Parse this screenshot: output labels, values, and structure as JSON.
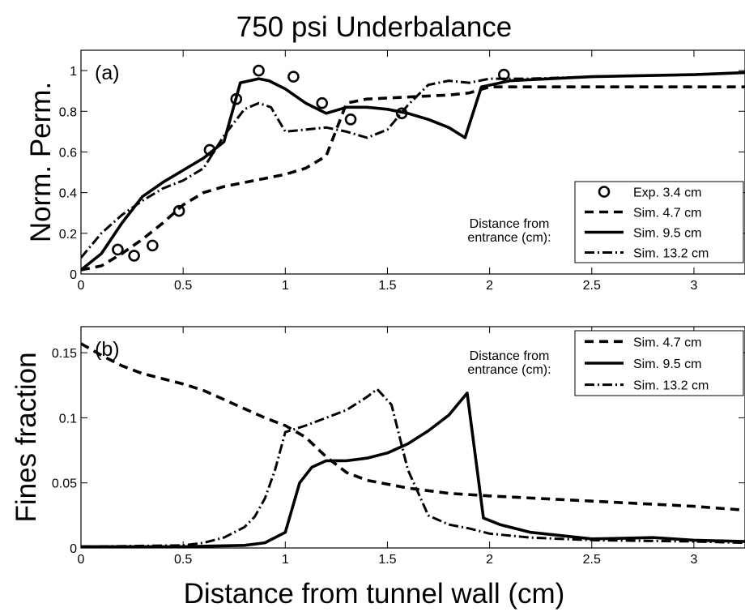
{
  "figure": {
    "title": "750 psi Underbalance",
    "xlabel": "Distance from tunnel wall (cm)"
  },
  "chart_data": [
    {
      "type": "line",
      "panel_label": "(a)",
      "ylabel": "Norm. Perm.",
      "xlim": [
        0,
        3.25
      ],
      "ylim": [
        0,
        1.1
      ],
      "xticks": [
        0,
        0.5,
        1,
        1.5,
        2,
        2.5,
        3
      ],
      "xtick_labels": [
        "0",
        "0.5",
        "1",
        "1.5",
        "2",
        "2.5",
        "3"
      ],
      "yticks": [
        0,
        0.2,
        0.4,
        0.6,
        0.8,
        1
      ],
      "ytick_labels": [
        "0",
        "0.2",
        "0.4",
        "0.6",
        "0.8",
        "1"
      ],
      "legend_note": [
        "Distance from",
        "entrance (cm):"
      ],
      "legend_position": "lower-right",
      "series": [
        {
          "name": "Exp. 3.4 cm",
          "style": "circles",
          "x": [
            0.18,
            0.26,
            0.35,
            0.48,
            0.63,
            0.76,
            0.87,
            1.04,
            1.18,
            1.32,
            1.57,
            2.07
          ],
          "y": [
            0.12,
            0.09,
            0.14,
            0.31,
            0.61,
            0.86,
            1.0,
            0.97,
            0.84,
            0.76,
            0.79,
            0.98
          ]
        },
        {
          "name": "Sim. 4.7 cm",
          "style": "dashed",
          "x": [
            0,
            0.1,
            0.2,
            0.3,
            0.4,
            0.5,
            0.6,
            0.7,
            0.8,
            0.9,
            1.0,
            1.1,
            1.2,
            1.3,
            1.4,
            1.6,
            1.8,
            1.9,
            2.0,
            2.2,
            2.5,
            3.0,
            3.25
          ],
          "y": [
            0.02,
            0.04,
            0.1,
            0.17,
            0.25,
            0.34,
            0.4,
            0.43,
            0.45,
            0.47,
            0.49,
            0.52,
            0.58,
            0.84,
            0.86,
            0.87,
            0.88,
            0.89,
            0.92,
            0.92,
            0.92,
            0.92,
            0.92
          ]
        },
        {
          "name": "Sim. 9.5 cm",
          "style": "solid",
          "x": [
            0,
            0.1,
            0.2,
            0.3,
            0.4,
            0.5,
            0.6,
            0.7,
            0.78,
            0.87,
            0.92,
            1.0,
            1.1,
            1.2,
            1.3,
            1.4,
            1.5,
            1.6,
            1.7,
            1.8,
            1.88,
            1.96,
            2.1,
            2.5,
            3.0,
            3.25
          ],
          "y": [
            0.02,
            0.1,
            0.25,
            0.38,
            0.45,
            0.51,
            0.57,
            0.65,
            0.94,
            0.96,
            0.95,
            0.91,
            0.84,
            0.79,
            0.82,
            0.82,
            0.81,
            0.79,
            0.76,
            0.72,
            0.67,
            0.92,
            0.95,
            0.97,
            0.98,
            0.99
          ]
        },
        {
          "name": "Sim. 13.2 cm",
          "style": "dash-dot",
          "x": [
            0,
            0.1,
            0.2,
            0.3,
            0.4,
            0.5,
            0.6,
            0.7,
            0.8,
            0.87,
            0.93,
            1.0,
            1.1,
            1.2,
            1.3,
            1.4,
            1.5,
            1.6,
            1.7,
            1.8,
            1.9,
            2.0,
            2.2,
            2.5,
            3.0,
            3.25
          ],
          "y": [
            0.08,
            0.2,
            0.29,
            0.36,
            0.42,
            0.46,
            0.52,
            0.68,
            0.81,
            0.84,
            0.82,
            0.7,
            0.71,
            0.72,
            0.7,
            0.67,
            0.71,
            0.83,
            0.93,
            0.95,
            0.94,
            0.96,
            0.96,
            0.97,
            0.98,
            0.99
          ]
        }
      ]
    },
    {
      "type": "line",
      "panel_label": "(b)",
      "ylabel": "Fines fraction",
      "xlim": [
        0,
        3.25
      ],
      "ylim": [
        0,
        0.17
      ],
      "xticks": [
        0,
        0.5,
        1,
        1.5,
        2,
        2.5,
        3
      ],
      "xtick_labels": [
        "0",
        "0.5",
        "1",
        "1.5",
        "2",
        "2.5",
        "3"
      ],
      "yticks": [
        0,
        0.05,
        0.1,
        0.15
      ],
      "ytick_labels": [
        "0",
        "0.05",
        "0.1",
        "0.15"
      ],
      "legend_note": [
        "Distance from",
        "entrance (cm):"
      ],
      "legend_position": "top-right",
      "series": [
        {
          "name": "Sim. 4.7 cm",
          "style": "dashed",
          "x": [
            0,
            0.1,
            0.2,
            0.3,
            0.4,
            0.5,
            0.6,
            0.7,
            0.8,
            0.9,
            1.0,
            1.1,
            1.2,
            1.3,
            1.4,
            1.6,
            1.8,
            2.0,
            2.5,
            3.0,
            3.25
          ],
          "y": [
            0.157,
            0.148,
            0.14,
            0.134,
            0.13,
            0.126,
            0.121,
            0.114,
            0.107,
            0.1,
            0.094,
            0.085,
            0.07,
            0.058,
            0.052,
            0.046,
            0.042,
            0.04,
            0.036,
            0.032,
            0.029
          ]
        },
        {
          "name": "Sim. 9.5 cm",
          "style": "solid",
          "x": [
            0,
            0.5,
            0.8,
            0.9,
            1.0,
            1.07,
            1.13,
            1.2,
            1.3,
            1.4,
            1.5,
            1.6,
            1.7,
            1.8,
            1.89,
            1.97,
            2.05,
            2.2,
            2.5,
            2.8,
            3.0,
            3.25
          ],
          "y": [
            0.001,
            0.001,
            0.002,
            0.004,
            0.012,
            0.05,
            0.062,
            0.067,
            0.067,
            0.069,
            0.073,
            0.08,
            0.09,
            0.102,
            0.119,
            0.023,
            0.018,
            0.012,
            0.007,
            0.008,
            0.006,
            0.005
          ]
        },
        {
          "name": "Sim. 13.2 cm",
          "style": "dash-dot",
          "x": [
            0,
            0.5,
            0.6,
            0.7,
            0.8,
            0.85,
            0.9,
            0.95,
            1.0,
            1.1,
            1.2,
            1.3,
            1.4,
            1.45,
            1.52,
            1.6,
            1.7,
            1.8,
            1.9,
            2.0,
            2.2,
            2.5,
            3.0,
            3.25
          ],
          "y": [
            0.001,
            0.002,
            0.004,
            0.008,
            0.016,
            0.024,
            0.038,
            0.06,
            0.089,
            0.094,
            0.1,
            0.106,
            0.116,
            0.122,
            0.11,
            0.06,
            0.025,
            0.018,
            0.015,
            0.011,
            0.008,
            0.006,
            0.005,
            0.004
          ]
        }
      ]
    }
  ]
}
